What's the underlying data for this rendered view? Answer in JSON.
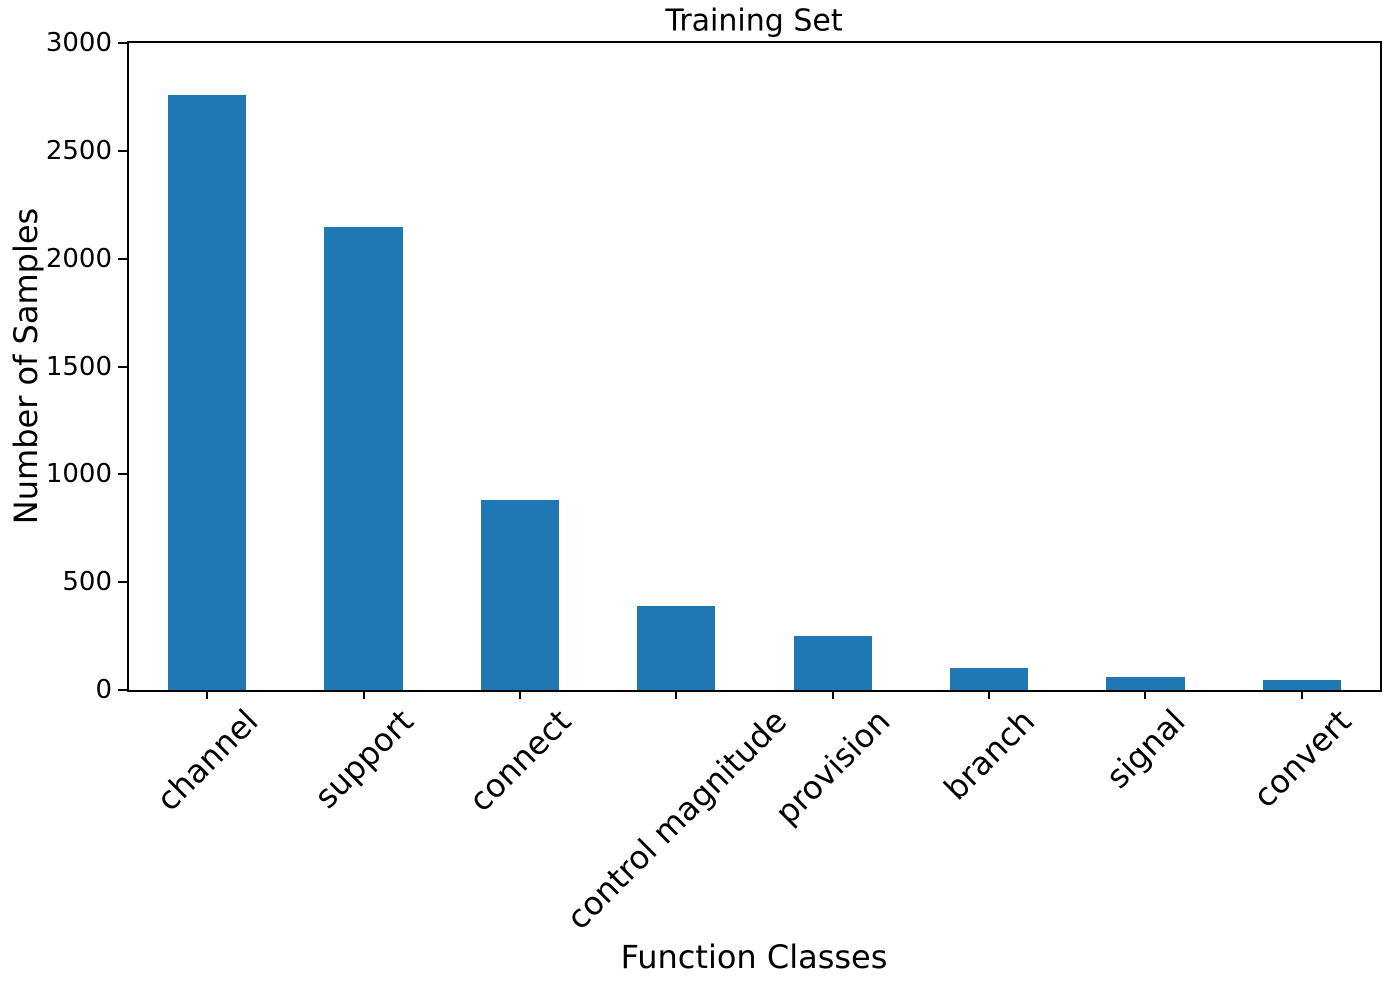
{
  "chart_data": {
    "type": "bar",
    "title": "Training Set",
    "xlabel": "Function Classes",
    "ylabel": "Number of Samples",
    "categories": [
      "channel",
      "support",
      "connect",
      "control magnitude",
      "provision",
      "branch",
      "signal",
      "convert"
    ],
    "values": [
      2760,
      2145,
      880,
      390,
      250,
      100,
      60,
      45
    ],
    "ylim": [
      0,
      3000
    ],
    "yticks": [
      0,
      500,
      1000,
      1500,
      2000,
      2500,
      3000
    ],
    "bar_color": "#1f77b4",
    "axis_color": "#000000",
    "background_color": "#ffffff",
    "grid": false,
    "legend": "none",
    "x_tick_rotation_deg": 45,
    "bar_width_fraction": 0.5
  }
}
